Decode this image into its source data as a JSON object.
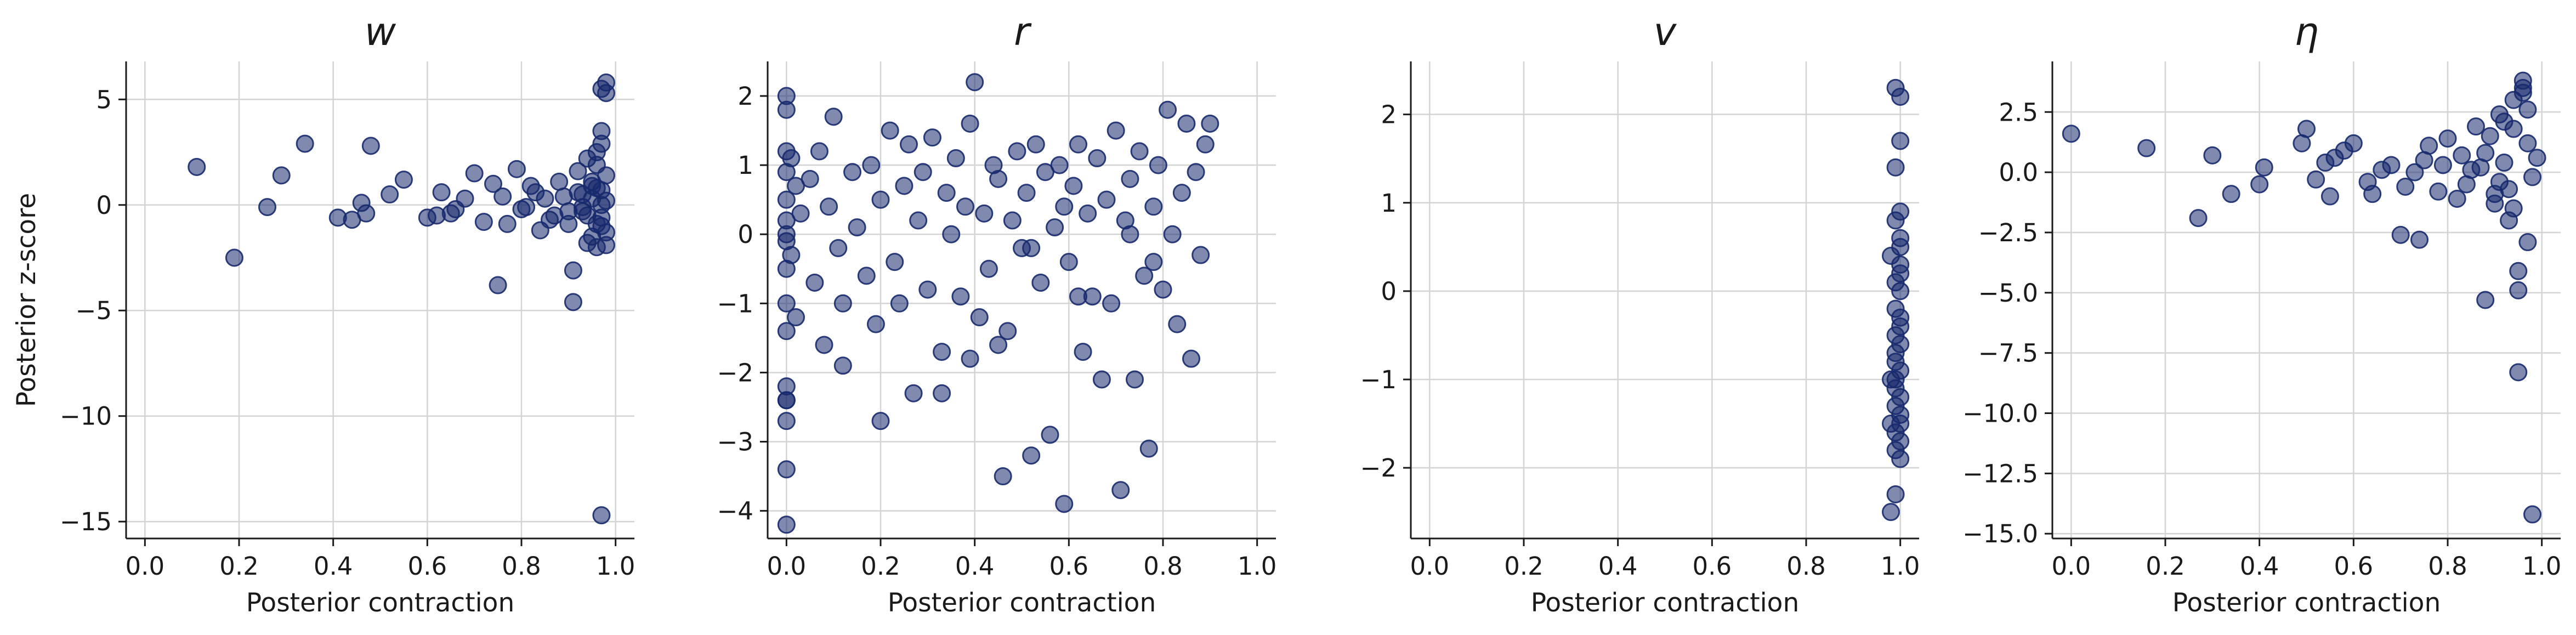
{
  "colors": {
    "point": "#172a6e",
    "grid": "#d4d4d4",
    "axis": "#1a1a1a"
  },
  "chart_data": [
    {
      "type": "scatter",
      "title": "w",
      "xlabel": "Posterior contraction",
      "ylabel": "Posterior z-score",
      "xlim": [
        -0.04,
        1.04
      ],
      "ylim": [
        -15.8,
        6.8
      ],
      "xticks": [
        0.0,
        0.2,
        0.4,
        0.6,
        0.8,
        1.0
      ],
      "xtick_labels": [
        "0.0",
        "0.2",
        "0.4",
        "0.6",
        "0.8",
        "1.0"
      ],
      "yticks": [
        5,
        0,
        -5,
        -10,
        -15
      ],
      "ytick_labels": [
        "5",
        "0",
        "−5",
        "−10",
        "−15"
      ],
      "grid": true,
      "x": [
        0.11,
        0.19,
        0.26,
        0.29,
        0.34,
        0.41,
        0.44,
        0.46,
        0.47,
        0.48,
        0.52,
        0.55,
        0.6,
        0.62,
        0.63,
        0.65,
        0.66,
        0.68,
        0.7,
        0.72,
        0.74,
        0.75,
        0.76,
        0.77,
        0.79,
        0.8,
        0.82,
        0.84,
        0.85,
        0.87,
        0.88,
        0.9,
        0.91,
        0.91,
        0.92,
        0.93,
        0.94,
        0.95,
        0.96,
        0.97,
        0.97,
        0.98,
        0.98,
        0.96,
        0.97,
        0.98,
        0.93,
        0.95,
        0.97,
        0.96,
        0.94,
        0.97,
        0.95,
        0.98,
        0.92,
        0.96,
        0.97,
        0.89,
        0.86,
        0.98,
        0.97,
        0.95,
        0.93,
        0.96,
        0.98,
        0.97,
        0.81,
        0.83,
        0.9,
        0.94
      ],
      "y": [
        1.8,
        -2.5,
        -0.1,
        1.4,
        2.9,
        -0.6,
        -0.7,
        0.1,
        -0.4,
        2.8,
        0.5,
        1.2,
        -0.6,
        -0.5,
        0.6,
        -0.4,
        -0.2,
        0.3,
        1.5,
        -0.8,
        1.0,
        -3.8,
        0.4,
        -0.9,
        1.7,
        -0.2,
        0.9,
        -1.2,
        0.3,
        -0.5,
        1.1,
        -0.9,
        -3.1,
        -4.6,
        0.6,
        -0.3,
        2.2,
        -1.5,
        0.8,
        -1.0,
        5.5,
        5.8,
        5.3,
        2.5,
        3.5,
        1.4,
        -0.1,
        0.3,
        -0.6,
        1.9,
        -1.8,
        0.0,
        0.9,
        -1.3,
        1.6,
        -2.0,
        2.9,
        0.4,
        -0.7,
        0.2,
        -14.7,
        1.1,
        0.5,
        -0.9,
        -1.9,
        0.7,
        -0.1,
        0.6,
        -0.3,
        -0.5
      ]
    },
    {
      "type": "scatter",
      "title": "r",
      "xlabel": "Posterior contraction",
      "ylabel": "",
      "xlim": [
        -0.04,
        1.04
      ],
      "ylim": [
        -4.4,
        2.5
      ],
      "xticks": [
        0.0,
        0.2,
        0.4,
        0.6,
        0.8,
        1.0
      ],
      "xtick_labels": [
        "0.0",
        "0.2",
        "0.4",
        "0.6",
        "0.8",
        "1.0"
      ],
      "yticks": [
        2,
        1,
        0,
        -1,
        -2,
        -3,
        -4
      ],
      "ytick_labels": [
        "2",
        "1",
        "0",
        "−1",
        "−2",
        "−3",
        "−4"
      ],
      "grid": true,
      "x": [
        0.0,
        0.0,
        0.0,
        0.0,
        0.0,
        0.0,
        0.0,
        0.0,
        0.0,
        0.0,
        0.0,
        0.0,
        0.01,
        0.01,
        0.02,
        0.02,
        0.03,
        0.05,
        0.06,
        0.07,
        0.08,
        0.09,
        0.1,
        0.11,
        0.12,
        0.14,
        0.15,
        0.17,
        0.18,
        0.19,
        0.2,
        0.22,
        0.23,
        0.24,
        0.25,
        0.26,
        0.27,
        0.28,
        0.29,
        0.3,
        0.31,
        0.33,
        0.34,
        0.35,
        0.36,
        0.37,
        0.38,
        0.39,
        0.4,
        0.41,
        0.42,
        0.43,
        0.44,
        0.45,
        0.46,
        0.47,
        0.48,
        0.49,
        0.5,
        0.51,
        0.52,
        0.53,
        0.54,
        0.55,
        0.56,
        0.57,
        0.58,
        0.59,
        0.6,
        0.61,
        0.62,
        0.63,
        0.64,
        0.65,
        0.66,
        0.67,
        0.68,
        0.69,
        0.7,
        0.71,
        0.72,
        0.73,
        0.74,
        0.75,
        0.76,
        0.77,
        0.78,
        0.79,
        0.8,
        0.81,
        0.82,
        0.83,
        0.84,
        0.85,
        0.86,
        0.87,
        0.88,
        0.89,
        0.9,
        0.0,
        0.0,
        0.0,
        0.0,
        0.0,
        0.12,
        0.2,
        0.33,
        0.39,
        0.45,
        0.52,
        0.59,
        0.62,
        0.73,
        0.78
      ],
      "y": [
        2.0,
        1.8,
        1.2,
        0.9,
        0.5,
        0.2,
        -0.1,
        -0.5,
        -1.0,
        -1.4,
        -2.2,
        -2.4,
        1.1,
        -0.3,
        0.7,
        -1.2,
        0.3,
        0.8,
        -0.7,
        1.2,
        -1.6,
        0.4,
        1.7,
        -0.2,
        -1.9,
        0.9,
        0.1,
        -0.6,
        1.0,
        -1.3,
        0.5,
        1.5,
        -0.4,
        -1.0,
        0.7,
        1.3,
        -2.3,
        0.2,
        0.9,
        -0.8,
        1.4,
        -1.7,
        0.6,
        0.0,
        1.1,
        -0.9,
        0.4,
        1.6,
        2.2,
        -1.2,
        0.3,
        -0.5,
        1.0,
        0.8,
        -3.5,
        -1.4,
        0.2,
        1.2,
        -0.2,
        0.6,
        -3.2,
        1.3,
        -0.7,
        0.9,
        -2.9,
        0.1,
        1.0,
        -3.9,
        -0.4,
        0.7,
        1.3,
        -1.7,
        0.3,
        -0.9,
        1.1,
        -2.1,
        0.5,
        -1.0,
        1.5,
        -3.7,
        0.2,
        0.8,
        -2.1,
        1.2,
        -0.6,
        -3.1,
        0.4,
        1.0,
        -0.8,
        1.8,
        0.0,
        -1.3,
        0.6,
        1.6,
        -1.8,
        0.9,
        -0.3,
        1.3,
        1.6,
        -2.7,
        -3.4,
        -4.2,
        0.0,
        -2.4,
        -1.0,
        -2.7,
        -2.3,
        -1.8,
        -1.6,
        -0.2,
        0.4,
        -0.9,
        0.0,
        -0.4
      ]
    },
    {
      "type": "scatter",
      "title": "v",
      "xlabel": "Posterior contraction",
      "ylabel": "",
      "xlim": [
        -0.04,
        1.04
      ],
      "ylim": [
        -2.8,
        2.6
      ],
      "xticks": [
        0.0,
        0.2,
        0.4,
        0.6,
        0.8,
        1.0
      ],
      "xtick_labels": [
        "0.0",
        "0.2",
        "0.4",
        "0.6",
        "0.8",
        "1.0"
      ],
      "yticks": [
        2,
        1,
        0,
        -1,
        -2
      ],
      "ytick_labels": [
        "2",
        "1",
        "0",
        "−1",
        "−2"
      ],
      "grid": true,
      "x": [
        0.99,
        1.0,
        1.0,
        0.99,
        1.0,
        0.99,
        1.0,
        0.98,
        1.0,
        0.99,
        1.0,
        0.99,
        1.0,
        0.99,
        1.0,
        0.99,
        1.0,
        0.98,
        0.99,
        1.0,
        0.99,
        1.0,
        0.98,
        0.99,
        1.0,
        0.99,
        1.0,
        0.99,
        0.98,
        1.0,
        1.0,
        0.99,
        1.0,
        0.99,
        1.0
      ],
      "y": [
        2.3,
        2.2,
        1.7,
        1.4,
        0.9,
        0.8,
        0.6,
        0.4,
        0.3,
        0.1,
        0.0,
        -0.2,
        -0.3,
        -0.5,
        -0.6,
        -0.8,
        -0.9,
        -1.0,
        -1.1,
        -1.2,
        -1.3,
        -1.4,
        -1.5,
        -1.6,
        -1.7,
        -1.8,
        -1.9,
        -2.3,
        -2.5,
        0.5,
        -0.4,
        -0.7,
        0.2,
        -1.0,
        -1.5
      ]
    },
    {
      "type": "scatter",
      "title": "η",
      "xlabel": "Posterior contraction",
      "ylabel": "",
      "xlim": [
        -0.04,
        1.04
      ],
      "ylim": [
        -15.2,
        4.6
      ],
      "xticks": [
        0.0,
        0.2,
        0.4,
        0.6,
        0.8,
        1.0
      ],
      "xtick_labels": [
        "0.0",
        "0.2",
        "0.4",
        "0.6",
        "0.8",
        "1.0"
      ],
      "yticks": [
        2.5,
        0.0,
        -2.5,
        -5.0,
        -7.5,
        -10.0,
        -12.5,
        -15.0
      ],
      "ytick_labels": [
        "2.5",
        "0.0",
        "−2.5",
        "−5.0",
        "−7.5",
        "−10.0",
        "−12.5",
        "−15.0"
      ],
      "grid": true,
      "x": [
        0.0,
        0.16,
        0.27,
        0.3,
        0.34,
        0.4,
        0.41,
        0.49,
        0.5,
        0.52,
        0.54,
        0.55,
        0.56,
        0.58,
        0.6,
        0.63,
        0.64,
        0.66,
        0.68,
        0.7,
        0.71,
        0.73,
        0.74,
        0.75,
        0.76,
        0.78,
        0.79,
        0.8,
        0.82,
        0.83,
        0.84,
        0.86,
        0.87,
        0.88,
        0.89,
        0.9,
        0.91,
        0.92,
        0.93,
        0.94,
        0.95,
        0.96,
        0.97,
        0.98,
        0.99,
        0.93,
        0.94,
        0.95,
        0.96,
        0.9,
        0.92,
        0.97,
        0.95,
        0.88,
        0.98,
        0.96,
        0.94,
        0.97,
        0.85,
        0.91
      ],
      "y": [
        1.6,
        1.0,
        -1.9,
        0.7,
        -0.9,
        -0.5,
        0.2,
        1.2,
        1.8,
        -0.3,
        0.4,
        -1.0,
        0.6,
        0.9,
        1.2,
        -0.4,
        -0.9,
        0.1,
        0.3,
        -2.6,
        -0.6,
        0.0,
        -2.8,
        0.5,
        1.1,
        -0.8,
        0.3,
        1.4,
        -1.1,
        0.7,
        -0.5,
        1.9,
        0.2,
        -5.3,
        1.5,
        -1.3,
        2.4,
        0.4,
        -0.7,
        3.0,
        -4.9,
        3.8,
        1.2,
        -0.2,
        0.6,
        -2.0,
        1.8,
        -4.1,
        3.3,
        -0.9,
        2.1,
        -2.9,
        -8.3,
        0.8,
        -14.2,
        3.5,
        -1.5,
        2.6,
        0.1,
        -0.4
      ]
    }
  ]
}
